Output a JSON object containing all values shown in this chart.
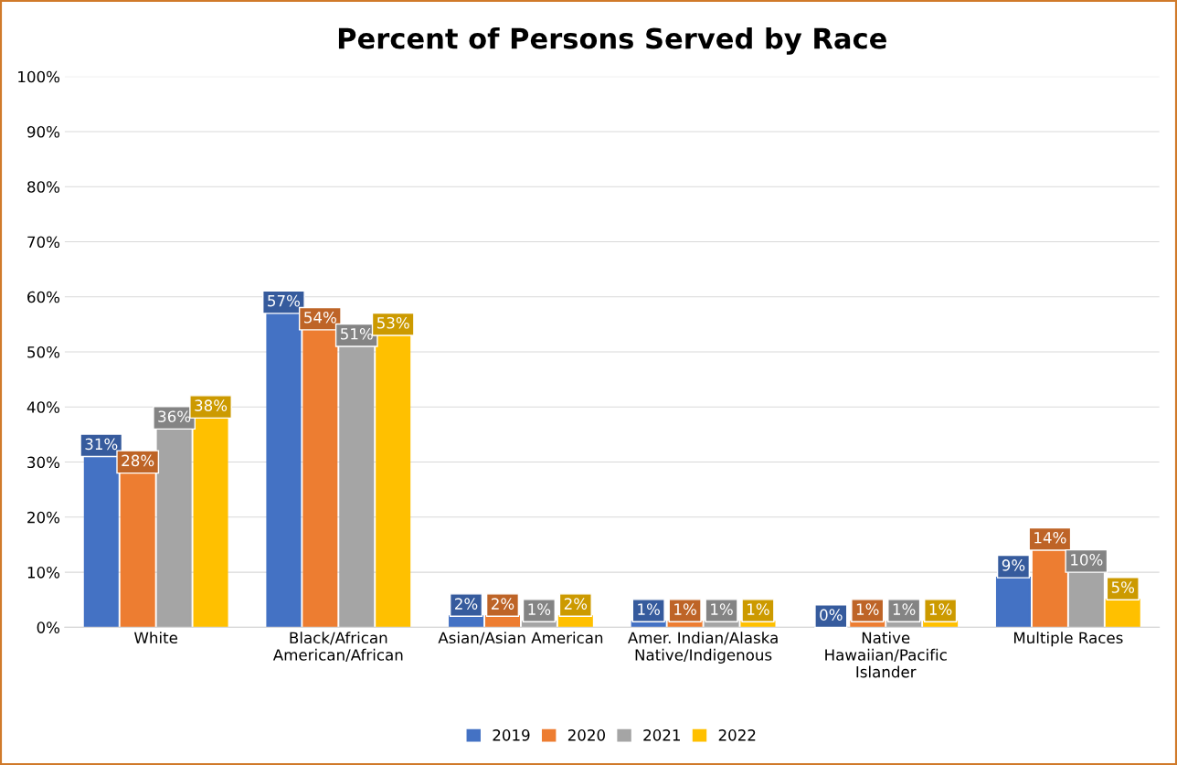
{
  "chart_data": {
    "type": "bar",
    "title": "Percent of Persons Served by Race",
    "categories": [
      "White",
      "Black/African\nAmerican/African",
      "Asian/Asian American",
      "Amer. Indian/Alaska\nNative/Indigenous",
      "Native\nHawaiian/Pacific\nIslander",
      "Multiple Races"
    ],
    "series": [
      {
        "name": "2019",
        "color": "#4472c4",
        "values": [
          31,
          57,
          2,
          1,
          0,
          9
        ],
        "value_labels": [
          "31%",
          "57%",
          "2%",
          "1%",
          "0%",
          "9%"
        ]
      },
      {
        "name": "2020",
        "color": "#ed7d31",
        "values": [
          28,
          54,
          2,
          1,
          1,
          14
        ],
        "value_labels": [
          "28%",
          "54%",
          "2%",
          "1%",
          "1%",
          "14%"
        ]
      },
      {
        "name": "2021",
        "color": "#a5a5a5",
        "values": [
          36,
          51,
          1,
          1,
          1,
          10
        ],
        "value_labels": [
          "36%",
          "51%",
          "1%",
          "1%",
          "1%",
          "10%"
        ]
      },
      {
        "name": "2022",
        "color": "#ffc000",
        "values": [
          38,
          53,
          2,
          1,
          1,
          5
        ],
        "value_labels": [
          "38%",
          "53%",
          "2%",
          "1%",
          "1%",
          "5%"
        ]
      }
    ],
    "ylim": [
      0,
      100
    ],
    "yticks": [
      {
        "value": 0,
        "label": "0%"
      },
      {
        "value": 10,
        "label": "10%"
      },
      {
        "value": 20,
        "label": "20%"
      },
      {
        "value": 30,
        "label": "30%"
      },
      {
        "value": 40,
        "label": "40%"
      },
      {
        "value": 50,
        "label": "50%"
      },
      {
        "value": 60,
        "label": "60%"
      },
      {
        "value": 70,
        "label": "70%"
      },
      {
        "value": 80,
        "label": "80%"
      },
      {
        "value": 90,
        "label": "90%"
      },
      {
        "value": 100,
        "label": "100%"
      }
    ],
    "grid": "y",
    "legend": "bottom"
  }
}
